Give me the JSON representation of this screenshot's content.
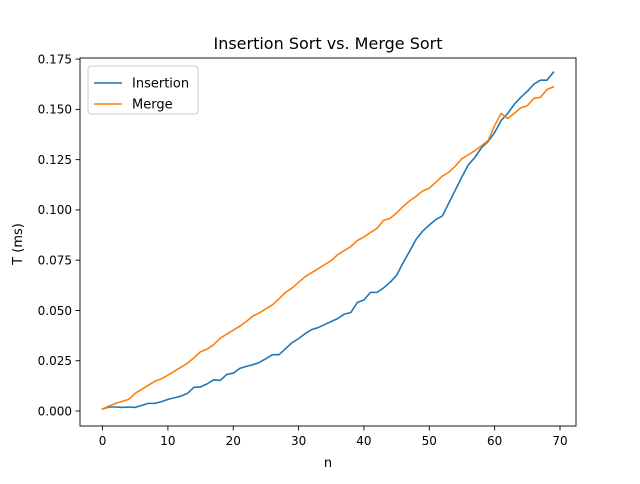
{
  "chart_data": {
    "type": "line",
    "title": "Insertion Sort vs. Merge Sort",
    "xlabel": "n",
    "ylabel": "T (ms)",
    "xlim": [
      -3.45,
      72.45
    ],
    "ylim": [
      -0.00745,
      0.17555
    ],
    "x_ticks": [
      0,
      10,
      20,
      30,
      40,
      50,
      60,
      70
    ],
    "y_ticks": [
      0.0,
      0.025,
      0.05,
      0.075,
      0.1,
      0.125,
      0.15,
      0.175
    ],
    "x_tick_labels": [
      "0",
      "10",
      "20",
      "30",
      "40",
      "50",
      "60",
      "70"
    ],
    "y_tick_labels": [
      "0.000",
      "0.025",
      "0.050",
      "0.075",
      "0.100",
      "0.125",
      "0.150",
      "0.175"
    ],
    "legend_position": "upper-left",
    "grid": false,
    "x": [
      0,
      1,
      2,
      3,
      4,
      5,
      6,
      7,
      8,
      9,
      10,
      11,
      12,
      13,
      14,
      15,
      16,
      17,
      18,
      19,
      20,
      21,
      22,
      23,
      24,
      25,
      26,
      27,
      28,
      29,
      30,
      31,
      32,
      33,
      34,
      35,
      36,
      37,
      38,
      39,
      40,
      41,
      42,
      43,
      44,
      45,
      46,
      47,
      48,
      49,
      50,
      51,
      52,
      53,
      54,
      55,
      56,
      57,
      58,
      59,
      60,
      61,
      62,
      63,
      64,
      65,
      66,
      67,
      68,
      69
    ],
    "series": [
      {
        "name": "Insertion",
        "color": "#1f77b4",
        "values": [
          0.001,
          0.002,
          0.002,
          0.0018,
          0.002,
          0.0018,
          0.0028,
          0.0038,
          0.0038,
          0.0046,
          0.0058,
          0.0066,
          0.0074,
          0.0088,
          0.0118,
          0.012,
          0.0135,
          0.0155,
          0.0152,
          0.0182,
          0.0188,
          0.0212,
          0.0222,
          0.023,
          0.0242,
          0.026,
          0.028,
          0.028,
          0.031,
          0.034,
          0.036,
          0.0385,
          0.0405,
          0.0415,
          0.043,
          0.0445,
          0.046,
          0.0482,
          0.049,
          0.054,
          0.0552,
          0.059,
          0.059,
          0.0612,
          0.064,
          0.0675,
          0.0738,
          0.0795,
          0.0855,
          0.0895,
          0.0925,
          0.0952,
          0.097,
          0.1035,
          0.11,
          0.1165,
          0.1225,
          0.1262,
          0.131,
          0.134,
          0.1385,
          0.1445,
          0.148,
          0.1525,
          0.156,
          0.159,
          0.1625,
          0.1645,
          0.1645,
          0.1685
        ]
      },
      {
        "name": "Merge",
        "color": "#ff7f0e",
        "values": [
          0.001,
          0.0025,
          0.0038,
          0.0048,
          0.0058,
          0.0088,
          0.0108,
          0.0128,
          0.0148,
          0.016,
          0.0178,
          0.0198,
          0.0218,
          0.0238,
          0.0265,
          0.0295,
          0.0308,
          0.033,
          0.0362,
          0.0382,
          0.0402,
          0.0422,
          0.0445,
          0.0472,
          0.0488,
          0.0508,
          0.0528,
          0.0558,
          0.059,
          0.0612,
          0.064,
          0.0668,
          0.0688,
          0.0708,
          0.0728,
          0.0748,
          0.0778,
          0.0798,
          0.0818,
          0.0848,
          0.0865,
          0.0888,
          0.0908,
          0.0948,
          0.0958,
          0.0985,
          0.1018,
          0.1045,
          0.1068,
          0.1095,
          0.1108,
          0.1138,
          0.1168,
          0.1188,
          0.1218,
          0.1255,
          0.1275,
          0.1295,
          0.132,
          0.1345,
          0.142,
          0.148,
          0.1455,
          0.148,
          0.1508,
          0.1518,
          0.1555,
          0.156,
          0.1598,
          0.1612
        ]
      }
    ]
  }
}
